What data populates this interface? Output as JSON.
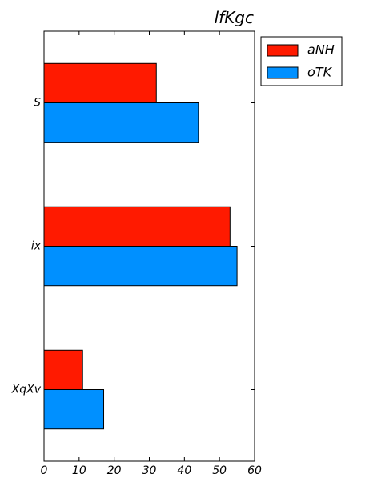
{
  "chart_data": {
    "type": "bar",
    "orientation": "horizontal",
    "title": "lfKgc",
    "categories": [
      "S",
      "ix",
      "XqXv"
    ],
    "series": [
      {
        "name": "aNH",
        "values": [
          32,
          53,
          11
        ],
        "color": "#ff1a00"
      },
      {
        "name": "oTK",
        "values": [
          44,
          55,
          17
        ],
        "color": "#0090ff"
      }
    ],
    "xlim": [
      0,
      60
    ],
    "xticks": [
      0,
      10,
      20,
      30,
      40,
      50,
      60
    ],
    "xlabel": "",
    "ylabel": "",
    "grid": false,
    "legend_position": "top-right"
  }
}
